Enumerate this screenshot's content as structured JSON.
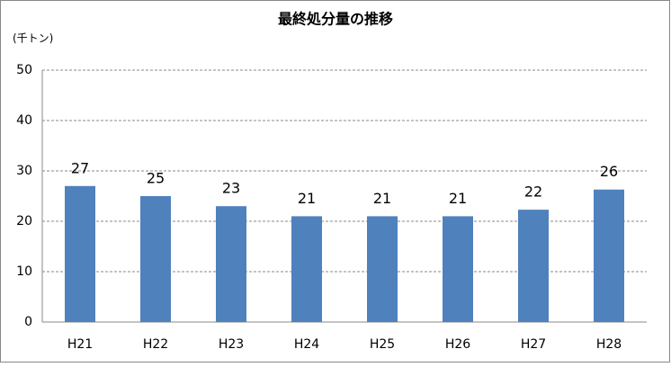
{
  "chart_data": {
    "type": "bar",
    "title": "最終処分量の推移",
    "y_label": "(千トン)",
    "categories": [
      "H21",
      "H22",
      "H23",
      "H24",
      "H25",
      "H26",
      "H27",
      "H28"
    ],
    "values": [
      27,
      25,
      23,
      21,
      21,
      21,
      22.3,
      26.3
    ],
    "value_labels": [
      "27",
      "25",
      "23",
      "21",
      "21",
      "21",
      "22",
      "26"
    ],
    "color": "#4f81bd",
    "ylim": [
      0,
      50
    ],
    "yticks": [
      0,
      10,
      20,
      30,
      40,
      50
    ],
    "grid": true
  }
}
